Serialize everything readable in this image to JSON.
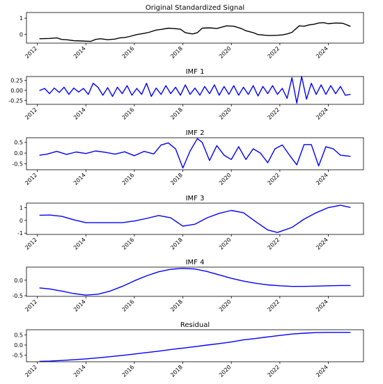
{
  "chart_data": [
    {
      "type": "line",
      "title": "Original Standardized Signal",
      "xlim": [
        2011.55,
        2025.45
      ],
      "ylim": [
        -0.55,
        1.35
      ],
      "yticks": [
        0,
        1
      ],
      "ytick_labels": [
        "0",
        "1"
      ],
      "xticks": [
        2012,
        2014,
        2016,
        2018,
        2020,
        2022,
        2024
      ],
      "xtick_labels": [
        "2012",
        "2014",
        "2016",
        "2018",
        "2020",
        "2022",
        "2024"
      ],
      "grid": false,
      "color": "#000000",
      "x": [
        2012.1,
        2012.5,
        2012.8,
        2013.0,
        2013.2,
        2013.5,
        2013.9,
        2014.2,
        2014.4,
        2014.6,
        2014.9,
        2015.2,
        2015.4,
        2015.6,
        2015.8,
        2016.1,
        2016.4,
        2016.6,
        2016.9,
        2017.1,
        2017.4,
        2017.6,
        2017.9,
        2018.1,
        2018.4,
        2018.6,
        2018.8,
        2019.1,
        2019.4,
        2019.6,
        2019.8,
        2020.1,
        2020.4,
        2020.6,
        2020.9,
        2021.1,
        2021.4,
        2021.6,
        2021.9,
        2022.1,
        2022.3,
        2022.5,
        2022.6,
        2022.8,
        2023.0,
        2023.2,
        2023.4,
        2023.6,
        2023.8,
        2024.0,
        2024.3,
        2024.6,
        2024.9
      ],
      "y": [
        -0.28,
        -0.26,
        -0.22,
        -0.32,
        -0.34,
        -0.4,
        -0.42,
        -0.44,
        -0.32,
        -0.28,
        -0.34,
        -0.3,
        -0.22,
        -0.2,
        -0.14,
        -0.02,
        0.06,
        0.12,
        0.26,
        0.3,
        0.38,
        0.36,
        0.32,
        0.1,
        0.02,
        0.1,
        0.38,
        0.4,
        0.36,
        0.44,
        0.52,
        0.5,
        0.36,
        0.22,
        0.1,
        -0.02,
        -0.06,
        -0.08,
        -0.06,
        -0.04,
        0.02,
        0.12,
        0.26,
        0.52,
        0.5,
        0.58,
        0.62,
        0.7,
        0.72,
        0.66,
        0.7,
        0.68,
        0.5
      ]
    },
    {
      "type": "line",
      "title": "IMF 1",
      "xlim": [
        2011.55,
        2025.45
      ],
      "ylim": [
        -0.35,
        0.35
      ],
      "yticks": [
        -0.25,
        0,
        0.25
      ],
      "ytick_labels": [
        "-0.25",
        "0.00",
        "0.25"
      ],
      "xticks": [
        2012,
        2014,
        2016,
        2018,
        2020,
        2022,
        2024
      ],
      "xtick_labels": [
        "2012",
        "2014",
        "2016",
        "2018",
        "2020",
        "2022",
        "2024"
      ],
      "grid": false,
      "color": "#0000ff",
      "x": [
        2012.1,
        2012.3,
        2012.5,
        2012.7,
        2012.9,
        2013.1,
        2013.3,
        2013.5,
        2013.7,
        2013.9,
        2014.1,
        2014.3,
        2014.5,
        2014.7,
        2014.9,
        2015.1,
        2015.3,
        2015.5,
        2015.7,
        2015.9,
        2016.1,
        2016.3,
        2016.5,
        2016.7,
        2016.9,
        2017.1,
        2017.3,
        2017.5,
        2017.7,
        2017.9,
        2018.1,
        2018.3,
        2018.5,
        2018.7,
        2018.9,
        2019.1,
        2019.3,
        2019.5,
        2019.7,
        2019.9,
        2020.1,
        2020.3,
        2020.5,
        2020.7,
        2020.9,
        2021.1,
        2021.3,
        2021.5,
        2021.7,
        2021.9,
        2022.1,
        2022.3,
        2022.5,
        2022.7,
        2022.9,
        2023.1,
        2023.3,
        2023.5,
        2023.7,
        2023.9,
        2024.1,
        2024.3,
        2024.5,
        2024.7,
        2024.9
      ],
      "y": [
        0.0,
        0.05,
        -0.08,
        0.06,
        -0.05,
        0.08,
        -0.1,
        0.06,
        -0.04,
        0.05,
        -0.1,
        0.18,
        0.08,
        -0.12,
        0.07,
        -0.15,
        0.08,
        -0.08,
        0.12,
        -0.12,
        0.05,
        -0.1,
        0.18,
        -0.15,
        0.06,
        -0.1,
        0.12,
        -0.08,
        0.08,
        -0.12,
        0.14,
        -0.1,
        0.06,
        -0.12,
        0.1,
        -0.08,
        0.14,
        -0.12,
        0.1,
        -0.1,
        0.12,
        -0.12,
        0.08,
        -0.1,
        0.12,
        -0.14,
        0.1,
        -0.08,
        0.12,
        -0.1,
        0.05,
        -0.2,
        0.32,
        -0.32,
        0.35,
        -0.22,
        0.18,
        -0.1,
        0.14,
        -0.1,
        0.12,
        -0.08,
        0.1,
        -0.12,
        -0.1
      ]
    },
    {
      "type": "line",
      "title": "IMF 2",
      "xlim": [
        2011.55,
        2025.45
      ],
      "ylim": [
        -0.78,
        0.72
      ],
      "yticks": [
        -0.5,
        0,
        0.5
      ],
      "ytick_labels": [
        "-0.5",
        "0.0",
        "0.5"
      ],
      "xticks": [
        2012,
        2014,
        2016,
        2018,
        2020,
        2022,
        2024
      ],
      "xtick_labels": [
        "2012",
        "2014",
        "2016",
        "2018",
        "2020",
        "2022",
        "2024"
      ],
      "grid": false,
      "color": "#0000ff",
      "x": [
        2012.1,
        2012.4,
        2012.8,
        2013.2,
        2013.6,
        2014.0,
        2014.4,
        2014.8,
        2015.2,
        2015.6,
        2016.0,
        2016.4,
        2016.8,
        2017.1,
        2017.4,
        2017.7,
        2018.0,
        2018.3,
        2018.6,
        2018.8,
        2019.1,
        2019.4,
        2019.7,
        2020.0,
        2020.3,
        2020.6,
        2020.9,
        2021.2,
        2021.5,
        2021.8,
        2022.1,
        2022.4,
        2022.7,
        2023.0,
        2023.3,
        2023.6,
        2023.9,
        2024.2,
        2024.5,
        2024.9
      ],
      "y": [
        -0.1,
        -0.05,
        0.08,
        -0.06,
        0.05,
        -0.02,
        0.1,
        0.04,
        -0.05,
        0.06,
        -0.12,
        0.08,
        -0.04,
        0.38,
        0.48,
        0.2,
        -0.7,
        0.1,
        0.68,
        0.5,
        -0.35,
        0.35,
        -0.1,
        -0.3,
        0.3,
        -0.3,
        0.2,
        0.0,
        -0.45,
        0.2,
        0.38,
        -0.1,
        -0.55,
        0.4,
        0.4,
        -0.6,
        0.3,
        0.2,
        -0.1,
        -0.15
      ]
    },
    {
      "type": "line",
      "title": "IMF 3",
      "xlim": [
        2011.55,
        2025.45
      ],
      "ylim": [
        -1.1,
        1.35
      ],
      "yticks": [
        -1,
        0,
        1
      ],
      "ytick_labels": [
        "-1",
        "0",
        "1"
      ],
      "xticks": [
        2012,
        2014,
        2016,
        2018,
        2020,
        2022,
        2024
      ],
      "xtick_labels": [
        "2012",
        "2014",
        "2016",
        "2018",
        "2020",
        "2022",
        "2024"
      ],
      "grid": false,
      "color": "#0000ff",
      "x": [
        2012.1,
        2012.5,
        2013.0,
        2013.5,
        2014.0,
        2014.5,
        2015.0,
        2015.5,
        2016.0,
        2016.5,
        2017.0,
        2017.5,
        2018.0,
        2018.5,
        2019.0,
        2019.5,
        2020.0,
        2020.5,
        2021.0,
        2021.5,
        2021.9,
        2022.5,
        2023.0,
        2023.5,
        2024.0,
        2024.5,
        2024.9
      ],
      "y": [
        0.4,
        0.42,
        0.32,
        0.05,
        -0.18,
        -0.18,
        -0.18,
        -0.18,
        -0.05,
        0.15,
        0.38,
        0.2,
        -0.45,
        -0.3,
        0.2,
        0.55,
        0.78,
        0.6,
        -0.1,
        -0.75,
        -0.95,
        -0.55,
        0.1,
        0.6,
        1.0,
        1.18,
        1.02
      ]
    },
    {
      "type": "line",
      "title": "IMF 4",
      "xlim": [
        2011.55,
        2025.45
      ],
      "ylim": [
        -0.52,
        0.42
      ],
      "yticks": [
        -0.5,
        0
      ],
      "ytick_labels": [
        "-0.5",
        "0.0"
      ],
      "xticks": [
        2012,
        2014,
        2016,
        2018,
        2020,
        2022,
        2024
      ],
      "xtick_labels": [
        "2012",
        "2014",
        "2016",
        "2018",
        "2020",
        "2022",
        "2024"
      ],
      "grid": false,
      "color": "#0000ff",
      "x": [
        2012.1,
        2012.5,
        2013.0,
        2013.5,
        2014.0,
        2014.5,
        2015.0,
        2015.5,
        2016.0,
        2016.5,
        2017.0,
        2017.5,
        2018.0,
        2018.5,
        2019.0,
        2019.5,
        2020.0,
        2020.5,
        2021.0,
        2021.5,
        2022.0,
        2022.5,
        2023.0,
        2023.5,
        2024.0,
        2024.5,
        2024.9
      ],
      "y": [
        -0.25,
        -0.28,
        -0.35,
        -0.43,
        -0.48,
        -0.45,
        -0.35,
        -0.2,
        -0.02,
        0.14,
        0.27,
        0.35,
        0.38,
        0.36,
        0.28,
        0.17,
        0.06,
        -0.03,
        -0.1,
        -0.15,
        -0.18,
        -0.2,
        -0.2,
        -0.19,
        -0.18,
        -0.17,
        -0.17
      ]
    },
    {
      "type": "line",
      "title": "Residual",
      "xlim": [
        2011.55,
        2025.45
      ],
      "ylim": [
        -0.82,
        0.75
      ],
      "yticks": [
        -0.5,
        0,
        0.5
      ],
      "ytick_labels": [
        "-0.5",
        "0.0",
        "0.5"
      ],
      "xticks": [
        2012,
        2014,
        2016,
        2018,
        2020,
        2022,
        2024
      ],
      "xtick_labels": [
        "2012",
        "2014",
        "2016",
        "2018",
        "2020",
        "2022",
        "2024"
      ],
      "grid": false,
      "color": "#0000ff",
      "x": [
        2012.1,
        2012.5,
        2013.0,
        2013.5,
        2014.0,
        2014.5,
        2015.0,
        2015.5,
        2016.0,
        2016.5,
        2017.0,
        2017.5,
        2018.0,
        2018.5,
        2019.0,
        2019.5,
        2020.0,
        2020.5,
        2021.0,
        2021.5,
        2022.0,
        2022.5,
        2023.0,
        2023.5,
        2024.0,
        2024.5,
        2024.9
      ],
      "y": [
        -0.8,
        -0.79,
        -0.76,
        -0.72,
        -0.68,
        -0.63,
        -0.57,
        -0.51,
        -0.44,
        -0.37,
        -0.3,
        -0.22,
        -0.15,
        -0.08,
        0.0,
        0.07,
        0.15,
        0.25,
        0.32,
        0.4,
        0.47,
        0.54,
        0.58,
        0.61,
        0.62,
        0.62,
        0.62
      ]
    }
  ]
}
